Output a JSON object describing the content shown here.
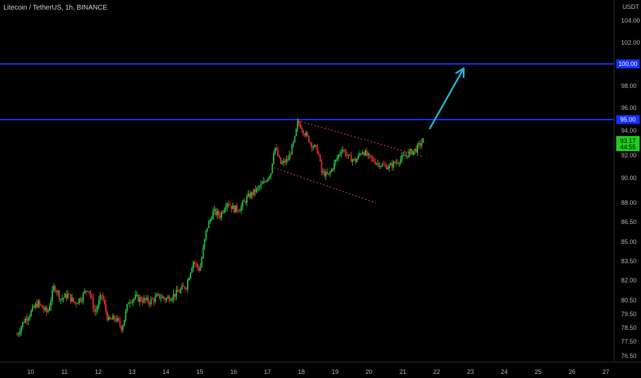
{
  "header": {
    "symbol": "Litecoin / TetherUS, 1h, BINANCE",
    "currency": "USDT"
  },
  "colors": {
    "background": "#000000",
    "up_candle": "#26c940",
    "down_candle": "#e5332a",
    "level_line": "#1531ff",
    "level_badge": "#1531ff",
    "channel": "#e0368a",
    "arrow": "#22b7d8",
    "price_badge": "#22cc22"
  },
  "chart_data": {
    "type": "candlestick",
    "title": "",
    "y_ticks": [
      "104.00",
      "102.00",
      "100.00",
      "98.00",
      "96.00",
      "95.00",
      "94.00",
      "92.00",
      "90.00",
      "88.00",
      "86.50",
      "85.00",
      "83.50",
      "82.00",
      "80.50",
      "79.50",
      "78.50",
      "77.50",
      "76.50"
    ],
    "x_ticks": [
      "10",
      "11",
      "12",
      "13",
      "14",
      "15",
      "16",
      "17",
      "18",
      "19",
      "20",
      "21",
      "22",
      "23",
      "24",
      "25",
      "26",
      "27"
    ],
    "ylim": [
      76.2,
      105.0
    ],
    "levels": [
      {
        "value": 100.0,
        "label": "100.00"
      },
      {
        "value": 95.0,
        "label": "95.00"
      }
    ],
    "last_price": {
      "value": 93.17,
      "label": "93.17",
      "countdown": "44:55"
    },
    "channel": {
      "upper": [
        [
          "17.9",
          94.9
        ],
        [
          "21.6",
          91.9
        ]
      ],
      "lower": [
        [
          "17.2",
          90.9
        ],
        [
          "20.2",
          88.0
        ]
      ]
    },
    "arrow": {
      "from": [
        "21.8",
        94.2
      ],
      "to": [
        "22.8",
        99.6
      ]
    },
    "price_path": [
      [
        "9.6",
        78.0
      ],
      [
        "9.8",
        79.0
      ],
      [
        "10.0",
        79.6
      ],
      [
        "10.2",
        80.3
      ],
      [
        "10.5",
        79.6
      ],
      [
        "10.7",
        81.6
      ],
      [
        "10.9",
        80.6
      ],
      [
        "11.1",
        80.9
      ],
      [
        "11.3",
        80.3
      ],
      [
        "11.5",
        80.7
      ],
      [
        "11.7",
        81.5
      ],
      [
        "11.9",
        79.6
      ],
      [
        "12.1",
        80.9
      ],
      [
        "12.3",
        79.0
      ],
      [
        "12.5",
        79.2
      ],
      [
        "12.7",
        78.5
      ],
      [
        "12.9",
        80.5
      ],
      [
        "13.1",
        80.7
      ],
      [
        "13.5",
        80.4
      ],
      [
        "13.8",
        80.8
      ],
      [
        "14.0",
        80.6
      ],
      [
        "14.3",
        81.0
      ],
      [
        "14.6",
        81.6
      ],
      [
        "14.8",
        83.5
      ],
      [
        "15.0",
        82.8
      ],
      [
        "15.2",
        86.0
      ],
      [
        "15.4",
        87.3
      ],
      [
        "15.6",
        87.0
      ],
      [
        "15.8",
        88.1
      ],
      [
        "16.0",
        87.5
      ],
      [
        "16.2",
        87.6
      ],
      [
        "16.4",
        88.4
      ],
      [
        "16.7",
        89.1
      ],
      [
        "16.9",
        89.6
      ],
      [
        "17.1",
        90.5
      ],
      [
        "17.2",
        92.8
      ],
      [
        "17.4",
        91.2
      ],
      [
        "17.6",
        91.6
      ],
      [
        "17.8",
        93.2
      ],
      [
        "17.9",
        94.8
      ],
      [
        "18.1",
        93.8
      ],
      [
        "18.3",
        92.9
      ],
      [
        "18.5",
        92.3
      ],
      [
        "18.6",
        90.5
      ],
      [
        "18.8",
        90.2
      ],
      [
        "19.0",
        91.4
      ],
      [
        "19.2",
        92.6
      ],
      [
        "19.4",
        91.8
      ],
      [
        "19.6",
        91.5
      ],
      [
        "19.8",
        92.4
      ],
      [
        "20.0",
        91.8
      ],
      [
        "20.2",
        91.4
      ],
      [
        "20.4",
        91.1
      ],
      [
        "20.6",
        91.0
      ],
      [
        "20.8",
        91.4
      ],
      [
        "21.0",
        91.8
      ],
      [
        "21.2",
        92.2
      ],
      [
        "21.4",
        92.5
      ],
      [
        "21.6",
        93.2
      ]
    ]
  }
}
